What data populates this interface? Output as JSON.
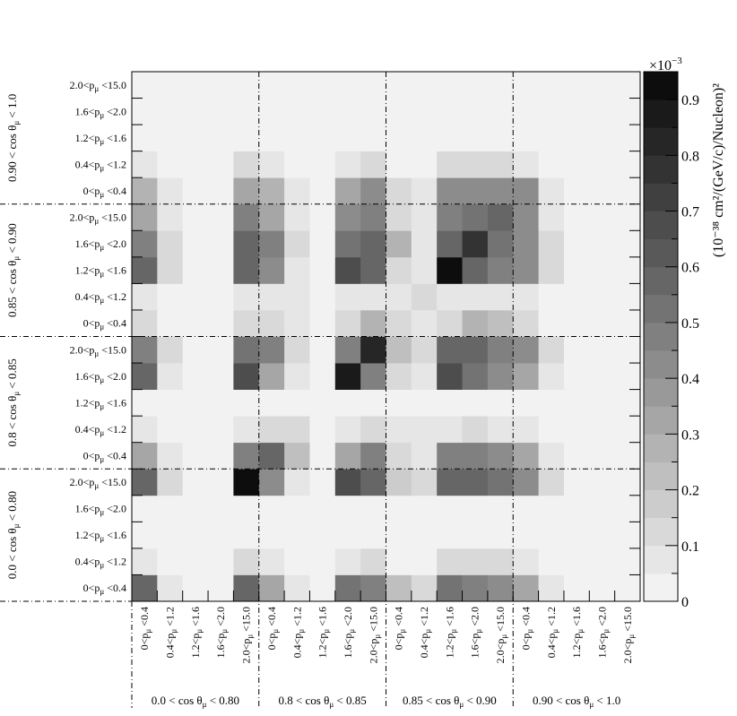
{
  "chart_data": {
    "type": "heatmap",
    "title": "",
    "xlabel": "",
    "ylabel": "",
    "p_bins": [
      {
        "lo": "0",
        "hi": "0.4"
      },
      {
        "lo": "0.4",
        "hi": "1.2"
      },
      {
        "lo": "1.2",
        "hi": "1.6"
      },
      {
        "lo": "1.6",
        "hi": "2.0"
      },
      {
        "lo": "2.0",
        "hi": "15.0"
      }
    ],
    "cos_bins": [
      {
        "lo": "0.0",
        "hi": "0.80"
      },
      {
        "lo": "0.8",
        "hi": "0.85"
      },
      {
        "lo": "0.85",
        "hi": "0.90"
      },
      {
        "lo": "0.90",
        "hi": "1.0"
      }
    ],
    "colorbar": {
      "min": 0,
      "max": 0.95,
      "step": 0.05,
      "ticks": [
        0,
        0.1,
        0.2,
        0.3,
        0.4,
        0.5,
        0.6,
        0.7,
        0.8,
        0.9
      ],
      "exponent_label": "×10",
      "exponent": "−3",
      "label": "(10⁻³⁸ cm²/(GeV/c)/Nucleon)²",
      "colors": [
        "#f2f2f2",
        "#e6e6e6",
        "#d9d9d9",
        "#cccccc",
        "#bfbfbf",
        "#b3b3b3",
        "#a6a6a6",
        "#999999",
        "#8c8c8c",
        "#808080",
        "#737373",
        "#666666",
        "#595959",
        "#4d4d4d",
        "#404040",
        "#333333",
        "#262626",
        "#1a1a1a",
        "#0d0d0d"
      ]
    },
    "grid_dividers": true,
    "values": [
      [
        0.55,
        0.06,
        0.02,
        0.02,
        0.55,
        0.32,
        0.06,
        0.02,
        0.5,
        0.45,
        0.2,
        0.1,
        0.5,
        0.45,
        0.4,
        0.35,
        0.05,
        0.0,
        0.0,
        0.0
      ],
      [
        0.05,
        0.0,
        0.0,
        0.0,
        0.15,
        0.05,
        0.0,
        0.0,
        0.05,
        0.13,
        0.0,
        0.0,
        0.15,
        0.15,
        0.1,
        0.05,
        0.0,
        0.0,
        0.0,
        0.0
      ],
      [
        0.0,
        0.0,
        0.0,
        0.0,
        0.0,
        0.0,
        0.0,
        0.0,
        0.0,
        0.0,
        0.0,
        0.0,
        0.0,
        0.0,
        0.0,
        0.0,
        0.0,
        0.0,
        0.0,
        0.0
      ],
      [
        0.0,
        0.0,
        0.0,
        0.0,
        0.0,
        0.0,
        0.0,
        0.0,
        0.0,
        0.0,
        0.0,
        0.0,
        0.0,
        0.0,
        0.0,
        0.0,
        0.0,
        0.0,
        0.0,
        0.0
      ],
      [
        0.55,
        0.15,
        0.02,
        0.02,
        0.95,
        0.4,
        0.05,
        0.02,
        0.65,
        0.55,
        0.18,
        0.1,
        0.6,
        0.55,
        0.5,
        0.4,
        0.15,
        0.0,
        0.0,
        0.0
      ],
      [
        0.35,
        0.05,
        0.0,
        0.0,
        0.45,
        0.55,
        0.2,
        0.0,
        0.35,
        0.45,
        0.15,
        0.05,
        0.45,
        0.45,
        0.4,
        0.35,
        0.05,
        0.0,
        0.0,
        0.0
      ],
      [
        0.05,
        0.0,
        0.0,
        0.0,
        0.05,
        0.15,
        0.15,
        0.0,
        0.05,
        0.1,
        0.05,
        0.05,
        0.05,
        0.1,
        0.05,
        0.05,
        0.0,
        0.0,
        0.0,
        0.0
      ],
      [
        0.0,
        0.0,
        0.0,
        0.0,
        0.0,
        0.0,
        0.0,
        0.0,
        0.0,
        0.0,
        0.0,
        0.0,
        0.0,
        0.0,
        0.0,
        0.0,
        0.0,
        0.0,
        0.0,
        0.0
      ],
      [
        0.55,
        0.05,
        0.0,
        0.0,
        0.65,
        0.35,
        0.05,
        0.0,
        0.85,
        0.45,
        0.15,
        0.05,
        0.65,
        0.5,
        0.4,
        0.35,
        0.05,
        0.0,
        0.0,
        0.0
      ],
      [
        0.45,
        0.15,
        0.0,
        0.0,
        0.5,
        0.45,
        0.15,
        0.0,
        0.45,
        0.8,
        0.2,
        0.1,
        0.55,
        0.6,
        0.45,
        0.4,
        0.15,
        0.0,
        0.0,
        0.0
      ],
      [
        0.15,
        0.0,
        0.0,
        0.0,
        0.15,
        0.15,
        0.05,
        0.0,
        0.15,
        0.25,
        0.15,
        0.05,
        0.15,
        0.25,
        0.2,
        0.15,
        0.0,
        0.0,
        0.0,
        0.0
      ],
      [
        0.05,
        0.0,
        0.0,
        0.0,
        0.05,
        0.05,
        0.05,
        0.0,
        0.05,
        0.05,
        0.05,
        0.1,
        0.05,
        0.05,
        0.05,
        0.05,
        0.0,
        0.0,
        0.0,
        0.0
      ],
      [
        0.55,
        0.15,
        0.0,
        0.0,
        0.6,
        0.4,
        0.05,
        0.0,
        0.65,
        0.55,
        0.15,
        0.05,
        0.95,
        0.55,
        0.45,
        0.4,
        0.15,
        0.0,
        0.0,
        0.0
      ],
      [
        0.45,
        0.15,
        0.0,
        0.0,
        0.55,
        0.45,
        0.15,
        0.0,
        0.5,
        0.6,
        0.25,
        0.05,
        0.6,
        0.75,
        0.5,
        0.4,
        0.15,
        0.0,
        0.0,
        0.0
      ],
      [
        0.35,
        0.05,
        0.0,
        0.0,
        0.45,
        0.35,
        0.05,
        0.0,
        0.4,
        0.45,
        0.15,
        0.05,
        0.45,
        0.5,
        0.55,
        0.4,
        0.05,
        0.0,
        0.0,
        0.0
      ],
      [
        0.3,
        0.05,
        0.0,
        0.0,
        0.35,
        0.3,
        0.05,
        0.0,
        0.35,
        0.4,
        0.15,
        0.05,
        0.4,
        0.4,
        0.4,
        0.4,
        0.05,
        0.0,
        0.0,
        0.0
      ],
      [
        0.05,
        0.0,
        0.0,
        0.0,
        0.1,
        0.05,
        0.0,
        0.0,
        0.05,
        0.1,
        0.0,
        0.0,
        0.15,
        0.15,
        0.1,
        0.05,
        0.0,
        0.0,
        0.0,
        0.0
      ],
      [
        0.0,
        0.0,
        0.0,
        0.0,
        0.0,
        0.0,
        0.0,
        0.0,
        0.0,
        0.0,
        0.0,
        0.0,
        0.0,
        0.0,
        0.0,
        0.0,
        0.0,
        0.0,
        0.0,
        0.0
      ],
      [
        0.0,
        0.0,
        0.0,
        0.0,
        0.0,
        0.0,
        0.0,
        0.0,
        0.0,
        0.0,
        0.0,
        0.0,
        0.0,
        0.0,
        0.0,
        0.0,
        0.0,
        0.0,
        0.0,
        0.0
      ],
      [
        0.0,
        0.0,
        0.0,
        0.0,
        0.0,
        0.0,
        0.0,
        0.0,
        0.0,
        0.0,
        0.0,
        0.0,
        0.0,
        0.0,
        0.0,
        0.0,
        0.0,
        0.0,
        0.0,
        0.0
      ]
    ]
  }
}
